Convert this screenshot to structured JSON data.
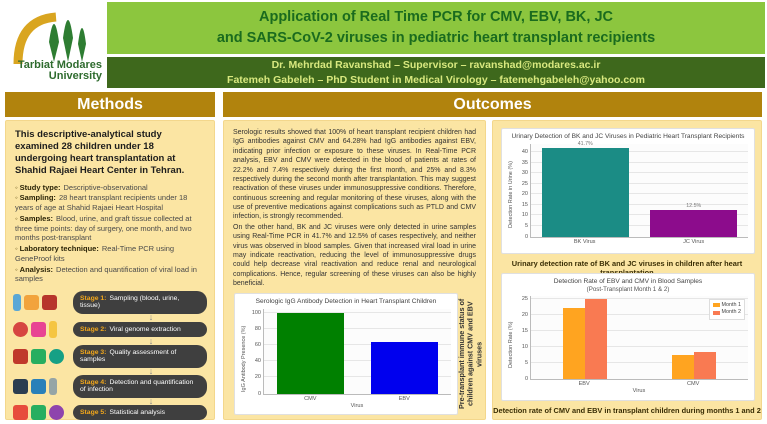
{
  "header": {
    "logo_line1": "Tarbiat Modares",
    "logo_line2": "University",
    "title_line1": "Application of Real Time PCR for CMV, EBV, BK, JC",
    "title_line2": "and SARS-CoV-2 viruses in pediatric heart transplant recipients",
    "authors_line1": "Dr. Mehrdad Ravanshad – Supervisor – ravanshad@modares.ac.ir",
    "authors_line2": "Fatemeh Gabeleh – PhD Student in Medical Virology – fatemehgabeleh@yahoo.com"
  },
  "methods": {
    "heading": "Methods",
    "intro": "This descriptive-analytical study examined 28 children under 18 undergoing heart transplantation at Shahid Rajaei Heart Center in Tehran.",
    "bullets": [
      {
        "label": "Study type:",
        "text": "Descriptive-observational"
      },
      {
        "label": "Sampling:",
        "text": "28 heart transplant recipients under 18 years of age at Shahid Rajaei Heart Hospital"
      },
      {
        "label": "Samples:",
        "text": "Blood, urine, and graft tissue collected at three time points: day of surgery, one month, and two months post-transplant"
      },
      {
        "label": "Laboratory technique:",
        "text": "Real-Time PCR using GeneProof kits"
      },
      {
        "label": "Analysis:",
        "text": "Detection and quantification of viral load in samples"
      }
    ],
    "stages": [
      {
        "label": "Stage 1:",
        "text": "Sampling (blood, urine, tissue)"
      },
      {
        "label": "Stage 2:",
        "text": "Viral genome extraction"
      },
      {
        "label": "Stage 3:",
        "text": "Quality assessment of samples"
      },
      {
        "label": "Stage 4:",
        "text": "Detection and quantification of infection"
      },
      {
        "label": "Stage 5:",
        "text": "Statistical analysis"
      }
    ],
    "arrow_glyph": "↓"
  },
  "outcomes": {
    "heading": "Outcomes",
    "paragraph1": "Serologic results showed that 100% of heart transplant recipient children had IgG antibodies against CMV and 64.28% had IgG antibodies against EBV, indicating prior infection or exposure to these viruses. In Real-Time PCR analysis, EBV and CMV were detected in the blood of patients at rates of 22.2% and 7.4% respectively during the first month, and 25% and 8.3% respectively during the second month after transplantation. This may suggest reactivation of these viruses under immunosuppressive conditions. Therefore, continuous screening and regular monitoring of these viruses, along with the use of preventive medications against complications such as PTLD and CMV infection, is strongly recommended.",
    "paragraph2": "On the other hand, BK and JC viruses were only detected in urine samples using Real-Time PCR in 41.7% and 12.5% of cases respectively, and neither virus was observed in blood samples. Given that increased viral load in urine may indicate reactivation, reducing the level of immunosuppressive drugs could help decrease viral reactivation and reduce renal and neurological complications. Hence, regular screening of these viruses can also be highly beneficial.",
    "serology_side_note": "Pre-transplant immune status of children against CMV and EBV viruses",
    "caption_bkjc": "Urinary detection rate of BK and JC viruses in children after heart transplantation",
    "caption_ebvcmv": "Detection rate of CMV and EBV in transplant children during months 1 and 2"
  },
  "colors": {
    "accent_gold": "#b1830d",
    "light_green": "#8cc63e",
    "dark_green": "#3e681c",
    "panel_yellow": "#fbe5a3"
  },
  "chart_data": [
    {
      "id": "serology",
      "type": "bar",
      "title": "Serologic IgG Antibody Detection in Heart Transplant Children",
      "categories": [
        "CMV",
        "EBV"
      ],
      "values": [
        100,
        64.28
      ],
      "bar_colors": [
        "#008000",
        "#0000ee"
      ],
      "xlabel": "Virus",
      "ylabel": "IgG Antibody Presence (%)",
      "ylim": [
        0,
        105
      ],
      "yticks": [
        0,
        20,
        40,
        60,
        80,
        100
      ],
      "grid": true,
      "bar_width_pct": 36
    },
    {
      "id": "urinary",
      "type": "bar",
      "title": "Urinary Detection of BK and JC Viruses in Pediatric Heart Transplant Recipients",
      "categories": [
        "BK Virus",
        "JC Virus"
      ],
      "values": [
        41.7,
        12.5
      ],
      "value_labels": [
        "41.7%",
        "12.5%"
      ],
      "bar_colors": [
        "#1b8c85",
        "#8c0c8c"
      ],
      "xlabel": "",
      "ylabel": "Detection Rate in Urine (%)",
      "ylim": [
        0,
        44
      ],
      "yticks": [
        0,
        5,
        10,
        15,
        20,
        25,
        30,
        35,
        40
      ],
      "grid": true,
      "bar_width_pct": 40
    },
    {
      "id": "blood",
      "type": "bar",
      "title": "Detection Rate of EBV and CMV in Blood Samples",
      "subtitle": "(Post-Transplant Month 1 & 2)",
      "categories": [
        "EBV",
        "CMV"
      ],
      "series": [
        {
          "name": "Month 1",
          "values": [
            22.2,
            7.4
          ],
          "color": "#ffa420"
        },
        {
          "name": "Month 2",
          "values": [
            25,
            8.3
          ],
          "color": "#f97a52"
        }
      ],
      "xlabel": "Virus",
      "ylabel": "Detection Rate (%)",
      "ylim": [
        0,
        26
      ],
      "yticks": [
        0,
        5,
        10,
        15,
        20,
        25
      ],
      "grid": true,
      "legend_position": "top-right",
      "bar_width_pct": 22
    }
  ]
}
